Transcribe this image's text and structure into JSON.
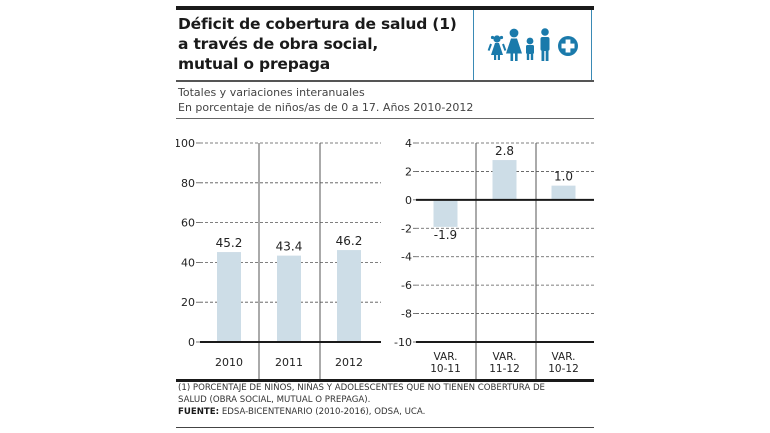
{
  "header": {
    "title_lines": [
      "Déficit de cobertura de salud (1)",
      "a través de obra social,",
      "mutual o prepaga"
    ],
    "subtitle_lines": [
      "Totales y variaciones interanuales",
      "En porcentaje de niños/as de 0 a 17. Años 2010-2012"
    ],
    "icons": [
      "girl-icon",
      "woman-icon",
      "boy-icon",
      "man-icon",
      "health-cross-icon"
    ],
    "icon_color": "#1a7aab"
  },
  "colors": {
    "bar": "#cddde7",
    "axis": "#1a1a1a",
    "grid": "#555555",
    "divider": "#555555"
  },
  "chart_data": [
    {
      "type": "bar",
      "title": "Totales",
      "categories": [
        "2010",
        "2011",
        "2012"
      ],
      "values": [
        45.2,
        43.4,
        46.2
      ],
      "value_labels": [
        "45.2",
        "43.4",
        "46.2"
      ],
      "ylim": [
        0,
        100
      ],
      "yticks": [
        0,
        20,
        40,
        60,
        80,
        100
      ],
      "ytick_labels": [
        "0",
        "20",
        "40",
        "60",
        "80",
        "100"
      ],
      "grid": true,
      "grid_style": "dashed",
      "xlabel": "",
      "ylabel": ""
    },
    {
      "type": "bar",
      "title": "Variaciones interanuales",
      "categories": [
        "VAR. 10-11",
        "VAR. 11-12",
        "VAR. 10-12"
      ],
      "category_lines": [
        [
          "VAR.",
          "10-11"
        ],
        [
          "VAR.",
          "11-12"
        ],
        [
          "VAR.",
          "10-12"
        ]
      ],
      "values": [
        -1.9,
        2.8,
        1.0
      ],
      "value_labels": [
        "-1.9",
        "2.8",
        "1.0"
      ],
      "ylim": [
        -10,
        4
      ],
      "yticks": [
        4,
        2,
        0,
        -2,
        -4,
        -6,
        -8,
        -10
      ],
      "ytick_labels": [
        "4",
        "2",
        "0",
        "-2",
        "-4",
        "-6",
        "-8",
        "-10"
      ],
      "grid": true,
      "grid_style": "dashed",
      "xlabel": "",
      "ylabel": ""
    }
  ],
  "footer": {
    "note_lines": [
      "(1) PORCENTAJE DE NIÑOS, NIÑAS Y ADOLESCENTES QUE NO TIENEN COBERTURA DE",
      "SALUD (OBRA SOCIAL, MUTUAL O PREPAGA)."
    ],
    "source_label": "FUENTE:",
    "source_text": " EDSA-BICENTENARIO (2010-2016), ODSA, UCA."
  }
}
